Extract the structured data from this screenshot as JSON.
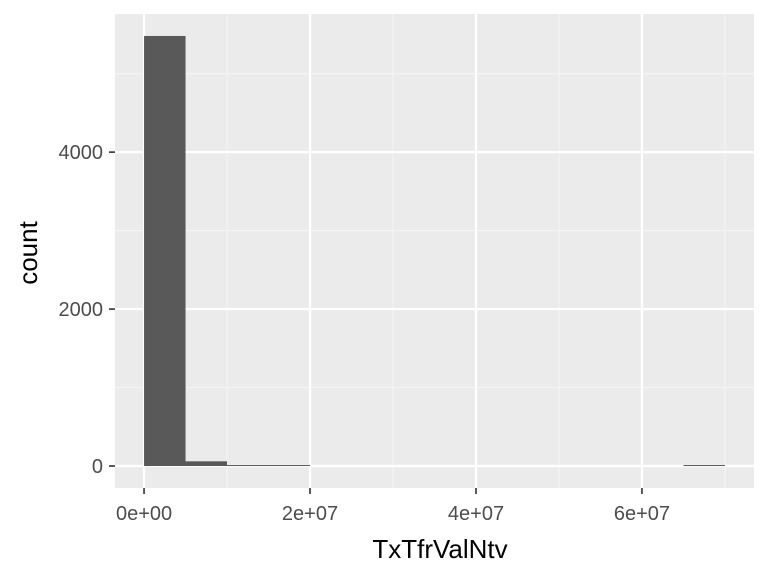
{
  "chart_data": {
    "type": "bar",
    "subtype": "histogram",
    "xlabel": "TxTfrValNtv",
    "ylabel": "count",
    "x_ticks": [
      0,
      20000000,
      40000000,
      60000000
    ],
    "x_tick_labels": [
      "0e+00",
      "2e+07",
      "4e+07",
      "6e+07"
    ],
    "y_ticks": [
      0,
      2000,
      4000
    ],
    "y_tick_labels": [
      "0",
      "2000",
      "4000"
    ],
    "xlim": [
      -3500000,
      73500000
    ],
    "ylim": [
      -280,
      5760
    ],
    "bin_width": 5000000,
    "bins": [
      {
        "start": 0,
        "end": 5000000,
        "count": 5480
      },
      {
        "start": 5000000,
        "end": 10000000,
        "count": 60
      },
      {
        "start": 10000000,
        "end": 15000000,
        "count": 10
      },
      {
        "start": 15000000,
        "end": 20000000,
        "count": 5
      },
      {
        "start": 20000000,
        "end": 25000000,
        "count": 0
      },
      {
        "start": 25000000,
        "end": 30000000,
        "count": 0
      },
      {
        "start": 30000000,
        "end": 35000000,
        "count": 0
      },
      {
        "start": 35000000,
        "end": 40000000,
        "count": 0
      },
      {
        "start": 40000000,
        "end": 45000000,
        "count": 0
      },
      {
        "start": 45000000,
        "end": 50000000,
        "count": 0
      },
      {
        "start": 50000000,
        "end": 55000000,
        "count": 0
      },
      {
        "start": 55000000,
        "end": 60000000,
        "count": 0
      },
      {
        "start": 60000000,
        "end": 65000000,
        "count": 0
      },
      {
        "start": 65000000,
        "end": 70000000,
        "count": 1
      }
    ],
    "grid": true,
    "colors": {
      "panel_background": "#ebebeb",
      "grid_major": "#ffffff",
      "grid_minor": "#f5f5f5",
      "bar_fill": "#595959",
      "tick_text": "#4d4d4d",
      "tick_mark": "#333333",
      "axis_title": "#000000"
    }
  }
}
